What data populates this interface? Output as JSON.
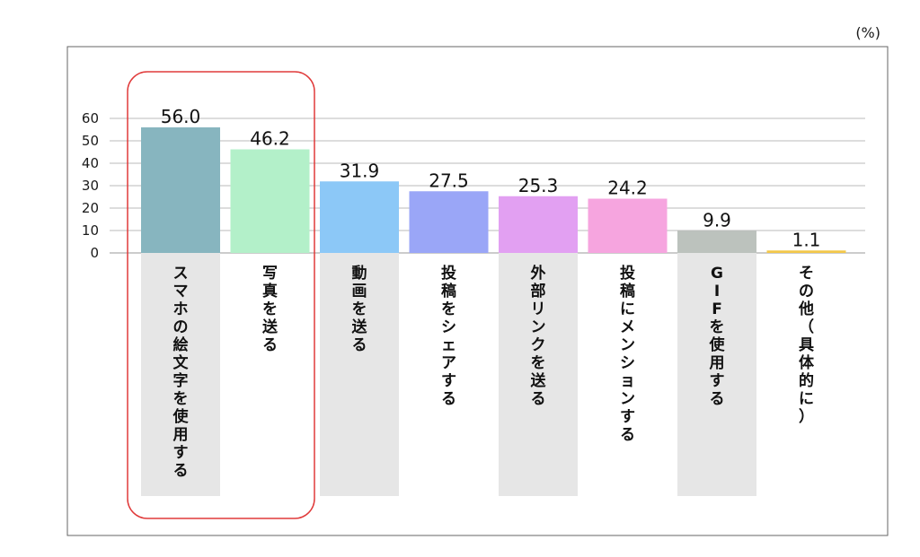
{
  "chart_data": {
    "type": "bar",
    "unit_label": "(%)",
    "categories": [
      "スマホの絵文字を使用する",
      "写真を送る",
      "動画を送る",
      "投稿をシェアする",
      "外部リンクを送る",
      "投稿にメンションする",
      "GIFを使用する",
      "その他（具体的に）"
    ],
    "values": [
      56.0,
      46.2,
      31.9,
      27.5,
      25.3,
      24.2,
      9.9,
      1.1
    ],
    "value_labels": [
      "56.0",
      "46.2",
      "31.9",
      "27.5",
      "25.3",
      "24.2",
      "9.9",
      "1.1"
    ],
    "y_ticks": [
      "0",
      "10",
      "20",
      "30",
      "40",
      "50",
      "60"
    ],
    "ylim": [
      0,
      60
    ],
    "grid": true,
    "legend": "none",
    "highlighted_categories": [
      "スマホの絵文字を使用する",
      "写真を送る"
    ],
    "colors": [
      "#87b5bf",
      "#b3f0c9",
      "#8cc8f7",
      "#9aa6f7",
      "#e2a0f2",
      "#f6a5df",
      "#bcc2bd",
      "#f3c84a"
    ],
    "label_band_color": "#e6e6e6",
    "highlight_color": "#e03a3a",
    "frame_color": "#666666",
    "grid_color": "#bbbbbb"
  }
}
